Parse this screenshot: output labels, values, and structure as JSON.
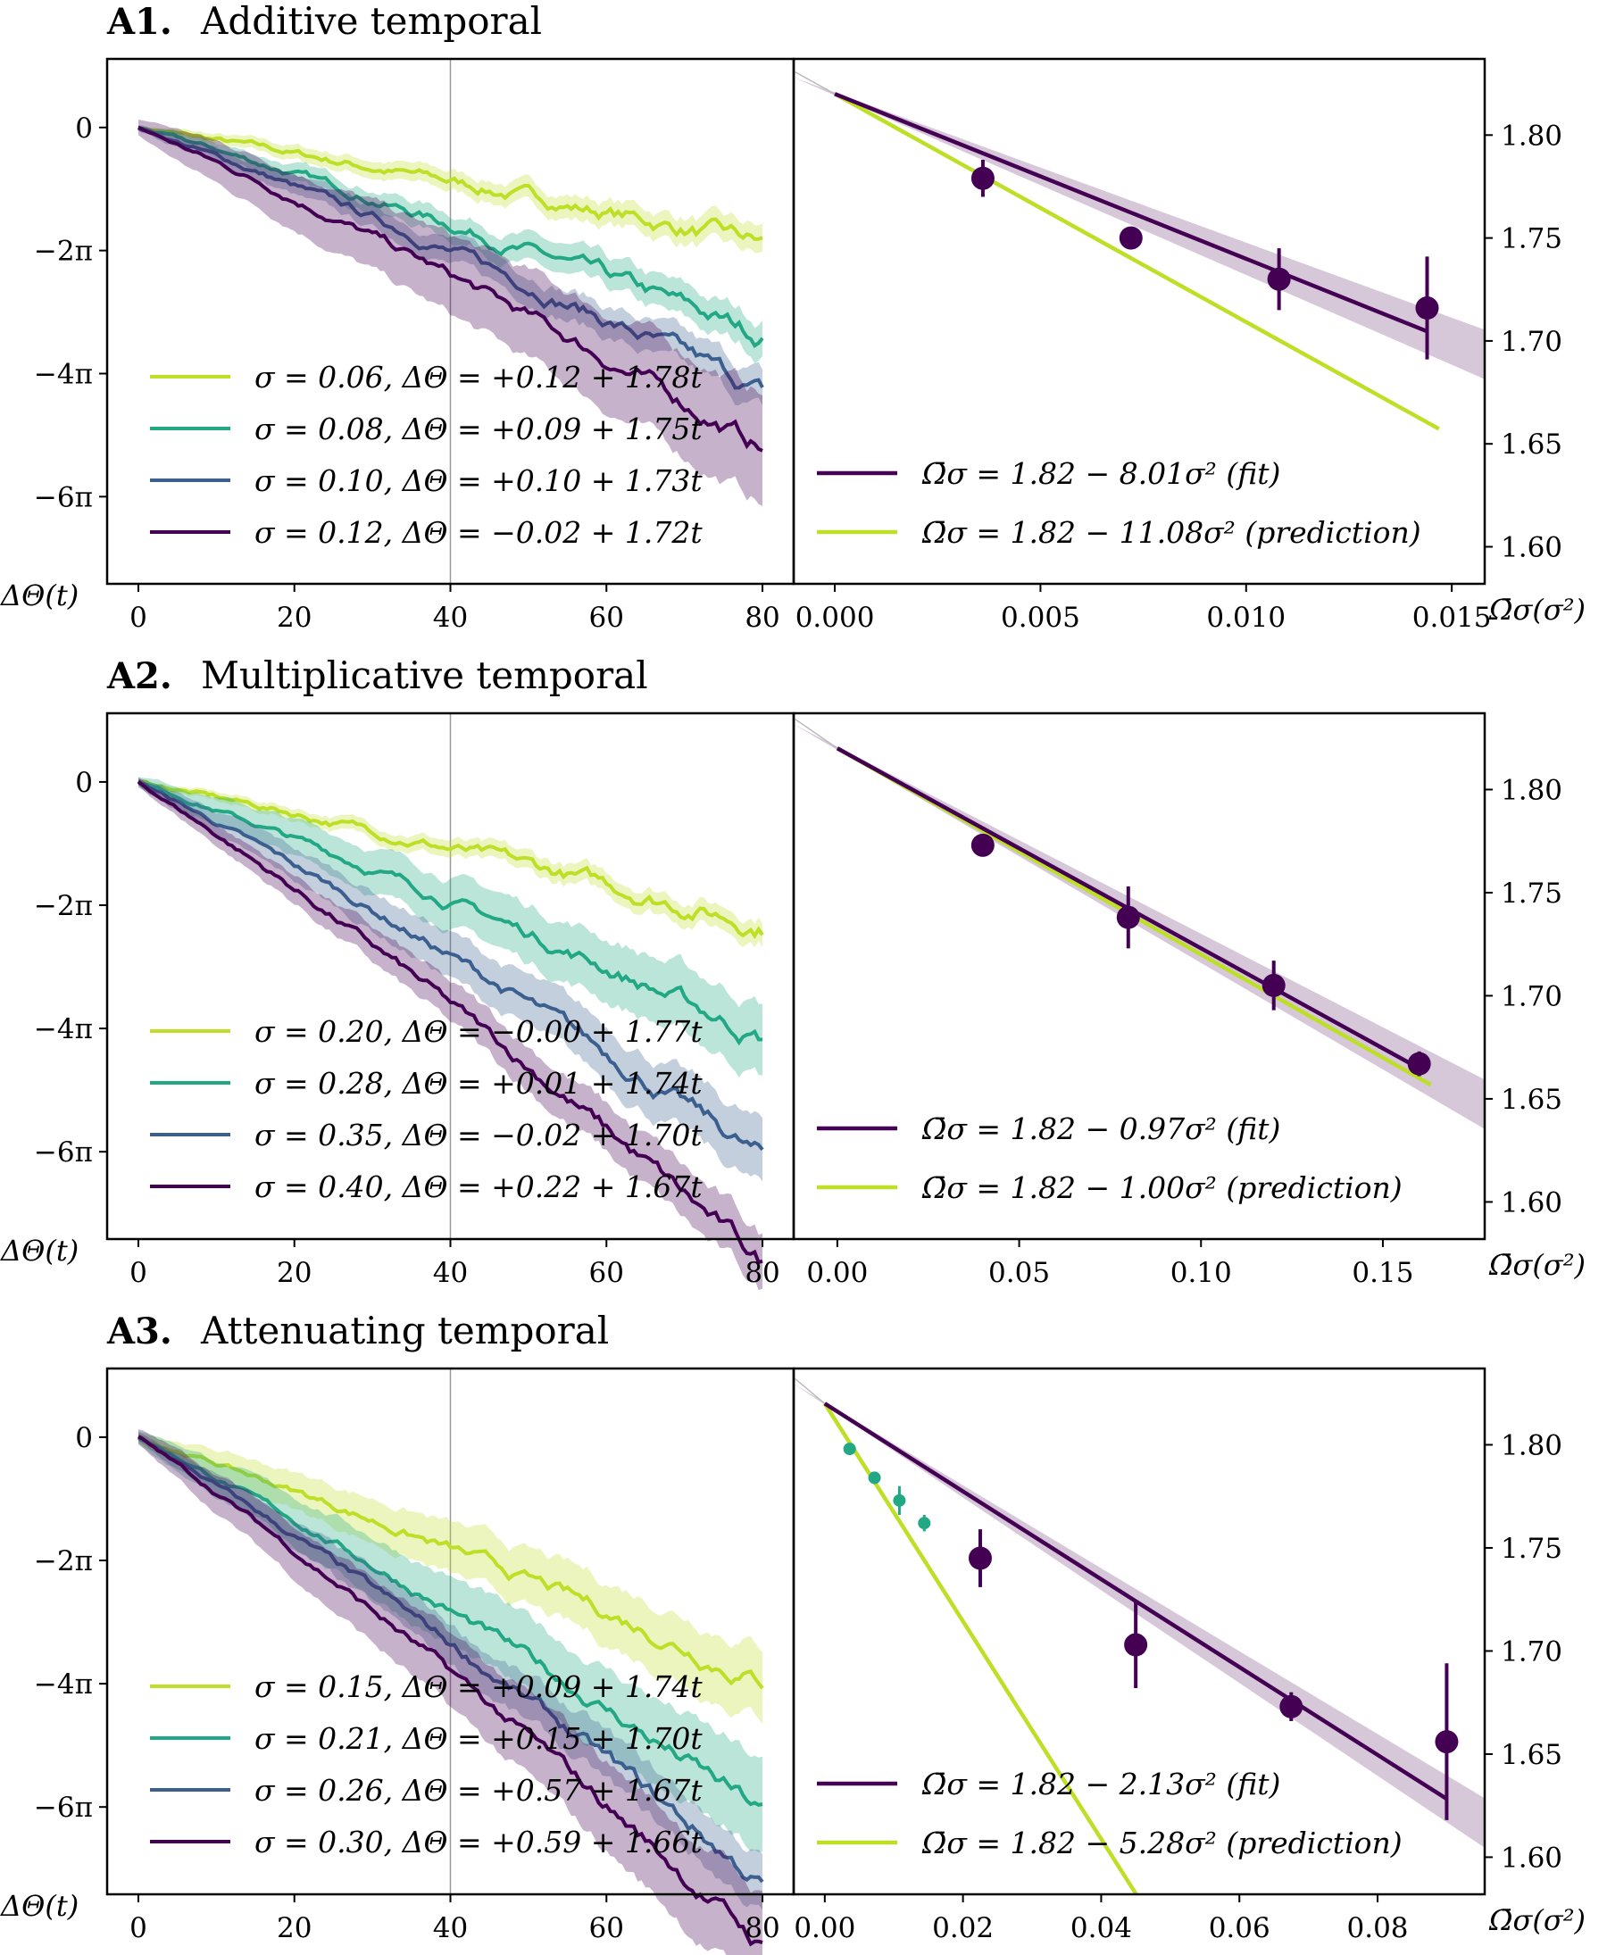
{
  "panels": [
    {
      "id": "A1",
      "label": "A1.",
      "title": "Additive temporal",
      "left_yticks": [
        "0",
        "−2π",
        "−4π",
        "−6π"
      ],
      "left_xticks": [
        "0",
        "20",
        "40",
        "60",
        "80"
      ],
      "right_xticks": [
        "0.000",
        "0.005",
        "0.010",
        "0.015"
      ],
      "right_yticks": [
        "1.80",
        "1.75",
        "1.70",
        "1.65",
        "1.60"
      ],
      "left_ylabel": "ΔΘ(t)",
      "right_xlabel": "Ω̄σ(σ²)",
      "fit_legend": "Ω̄σ = 1.82 − 8.01σ² (fit)",
      "pred_legend": "Ω̄σ = 1.82 − 11.08σ² (prediction)"
    },
    {
      "id": "A2",
      "label": "A2.",
      "title": "Multiplicative temporal",
      "left_yticks": [
        "0",
        "−2π",
        "−4π",
        "−6π"
      ],
      "left_xticks": [
        "0",
        "20",
        "40",
        "60",
        "80"
      ],
      "right_xticks": [
        "0.00",
        "0.05",
        "0.10",
        "0.15"
      ],
      "right_yticks": [
        "1.80",
        "1.75",
        "1.70",
        "1.65",
        "1.60"
      ],
      "left_ylabel": "ΔΘ(t)",
      "right_xlabel": "Ω̄σ(σ²)",
      "fit_legend": "Ω̄σ = 1.82 − 0.97σ² (fit)",
      "pred_legend": "Ω̄σ = 1.82 − 1.00σ² (prediction)"
    },
    {
      "id": "A3",
      "label": "A3.",
      "title": "Attenuating temporal",
      "left_yticks": [
        "0",
        "−2π",
        "−4π",
        "−6π"
      ],
      "left_xticks": [
        "0",
        "20",
        "40",
        "60",
        "80"
      ],
      "right_xticks": [
        "0.00",
        "0.02",
        "0.04",
        "0.06",
        "0.08"
      ],
      "right_yticks": [
        "1.80",
        "1.75",
        "1.70",
        "1.65",
        "1.60"
      ],
      "left_ylabel": "ΔΘ(t)",
      "right_xlabel": "Ω̄σ(σ²)",
      "fit_legend": "Ω̄σ = 1.82 − 2.13σ² (fit)",
      "pred_legend": "Ω̄σ = 1.82 − 5.28σ² (prediction)"
    }
  ],
  "colors": {
    "c1": "#bddf26",
    "c2": "#22a884",
    "c3": "#3b5f8e",
    "c4": "#440154",
    "vline": "#999999"
  },
  "chart_data": [
    {
      "type": "line",
      "panel": "A1 left",
      "x_range": [
        0,
        80
      ],
      "y_unit": "radians (ticks at multiples of 2π)",
      "ylim": [
        -23.3,
        3.5
      ],
      "vertical_line_x": 40,
      "series": [
        {
          "name": "σ = 0.06, ΔΘ = +0.12 + 1.78t",
          "sigma": 0.06,
          "end": -6.0,
          "band": 0.7
        },
        {
          "name": "σ = 0.08, ΔΘ = +0.09 + 1.75t",
          "sigma": 0.08,
          "end": -10.7,
          "band": 0.9
        },
        {
          "name": "σ = 0.10, ΔΘ = +0.10 + 1.73t",
          "sigma": 0.1,
          "end": -13.6,
          "band": 0.9
        },
        {
          "name": "σ = 0.12, ΔΘ = −0.02 + 1.72t",
          "sigma": 0.12,
          "end": -16.4,
          "band": 2.8
        }
      ]
    },
    {
      "type": "scatter",
      "panel": "A1 right",
      "xlim": [
        -0.001,
        0.0158
      ],
      "ylim": [
        1.582,
        1.837
      ],
      "points": [
        {
          "x": 0.0036,
          "y": 1.779,
          "err": 0.009
        },
        {
          "x": 0.0072,
          "y": 1.75,
          "err": 0.003
        },
        {
          "x": 0.0108,
          "y": 1.73,
          "err": 0.015
        },
        {
          "x": 0.0144,
          "y": 1.716,
          "err": 0.025
        }
      ],
      "fit": {
        "intercept": 1.82,
        "slope": -8.01
      },
      "prediction": {
        "intercept": 1.82,
        "slope": -11.08
      }
    },
    {
      "type": "line",
      "panel": "A2 left",
      "x_range": [
        0,
        80
      ],
      "ylim": [
        -23.3,
        3.5
      ],
      "vertical_line_x": 40,
      "series": [
        {
          "name": "σ = 0.20, ΔΘ = −0.00 + 1.77t",
          "sigma": 0.2,
          "end": -7.3,
          "band": 0.6
        },
        {
          "name": "σ = 0.28, ΔΘ = +0.01 + 1.74t",
          "sigma": 0.28,
          "end": -13.1,
          "band": 1.8
        },
        {
          "name": "σ = 0.35, ΔΘ = −0.02 + 1.70t",
          "sigma": 0.35,
          "end": -19.2,
          "band": 1.6
        },
        {
          "name": "σ = 0.40, ΔΘ = +0.22 + 1.67t",
          "sigma": 0.4,
          "end": -24.6,
          "band": 1.4
        }
      ]
    },
    {
      "type": "scatter",
      "panel": "A2 right",
      "xlim": [
        -0.012,
        0.178
      ],
      "ylim": [
        1.582,
        1.837
      ],
      "points": [
        {
          "x": 0.04,
          "y": 1.773,
          "err": 0.004
        },
        {
          "x": 0.08,
          "y": 1.738,
          "err": 0.015
        },
        {
          "x": 0.12,
          "y": 1.705,
          "err": 0.012
        },
        {
          "x": 0.16,
          "y": 1.667,
          "err": 0.006
        }
      ],
      "fit": {
        "intercept": 1.82,
        "slope": -0.97
      },
      "prediction": {
        "intercept": 1.82,
        "slope": -1.0
      }
    },
    {
      "type": "line",
      "panel": "A3 left",
      "x_range": [
        0,
        80
      ],
      "ylim": [
        -23.3,
        3.5
      ],
      "vertical_line_x": 40,
      "series": [
        {
          "name": "σ = 0.15, ΔΘ = +0.09 + 1.74t",
          "sigma": 0.15,
          "end": -12.4,
          "band": 1.8
        },
        {
          "name": "σ = 0.21, ΔΘ = +0.15 + 1.70t",
          "sigma": 0.21,
          "end": -19.2,
          "band": 2.4
        },
        {
          "name": "σ = 0.26, ΔΘ = +0.57 + 1.67t",
          "sigma": 0.26,
          "end": -22.8,
          "band": 1.4
        },
        {
          "name": "σ = 0.30, ΔΘ = +0.59 + 1.66t",
          "sigma": 0.3,
          "end": -26.0,
          "band": 2.6
        }
      ]
    },
    {
      "type": "scatter",
      "panel": "A3 right",
      "xlim": [
        -0.0045,
        0.0955
      ],
      "ylim": [
        1.582,
        1.837
      ],
      "points": [
        {
          "x": 0.0225,
          "y": 1.745,
          "err": 0.014
        },
        {
          "x": 0.045,
          "y": 1.703,
          "err": 0.021
        },
        {
          "x": 0.0675,
          "y": 1.673,
          "err": 0.007
        },
        {
          "x": 0.09,
          "y": 1.656,
          "err": 0.038
        }
      ],
      "small_points": [
        {
          "x": 0.0036,
          "y": 1.798,
          "err": 0.002
        },
        {
          "x": 0.0072,
          "y": 1.784,
          "err": 0.003
        },
        {
          "x": 0.0108,
          "y": 1.773,
          "err": 0.007
        },
        {
          "x": 0.0144,
          "y": 1.762,
          "err": 0.004
        }
      ],
      "fit": {
        "intercept": 1.82,
        "slope": -2.13
      },
      "prediction": {
        "intercept": 1.82,
        "slope": -5.28
      }
    }
  ]
}
